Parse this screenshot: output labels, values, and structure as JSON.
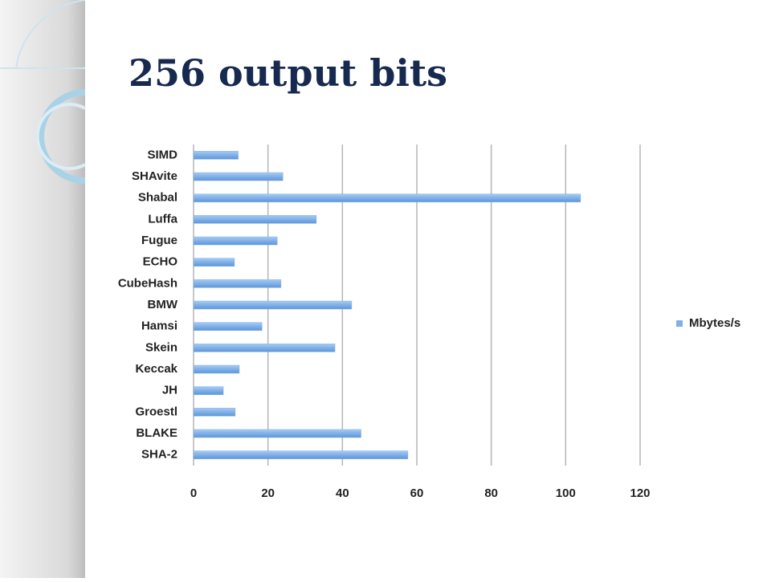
{
  "chart_data": {
    "type": "bar",
    "orientation": "horizontal",
    "title": "256 output bits",
    "categories": [
      "SIMD",
      "SHAvite",
      "Shabal",
      "Luffa",
      "Fugue",
      "ECHO",
      "CubeHash",
      "BMW",
      "Hamsi",
      "Skein",
      "Keccak",
      "JH",
      "Groestl",
      "BLAKE",
      "SHA-2"
    ],
    "series": [
      {
        "name": "Mbytes/s",
        "color": "#7fb0e8",
        "values": [
          12,
          24,
          104,
          33,
          22.5,
          11,
          23.5,
          42.5,
          18.4,
          38,
          12.3,
          8,
          11.2,
          45,
          57.6
        ]
      }
    ],
    "xlim": [
      0,
      120
    ],
    "xticks": [
      0,
      20,
      40,
      60,
      80,
      100,
      120
    ],
    "grid": true,
    "legend": "right"
  }
}
